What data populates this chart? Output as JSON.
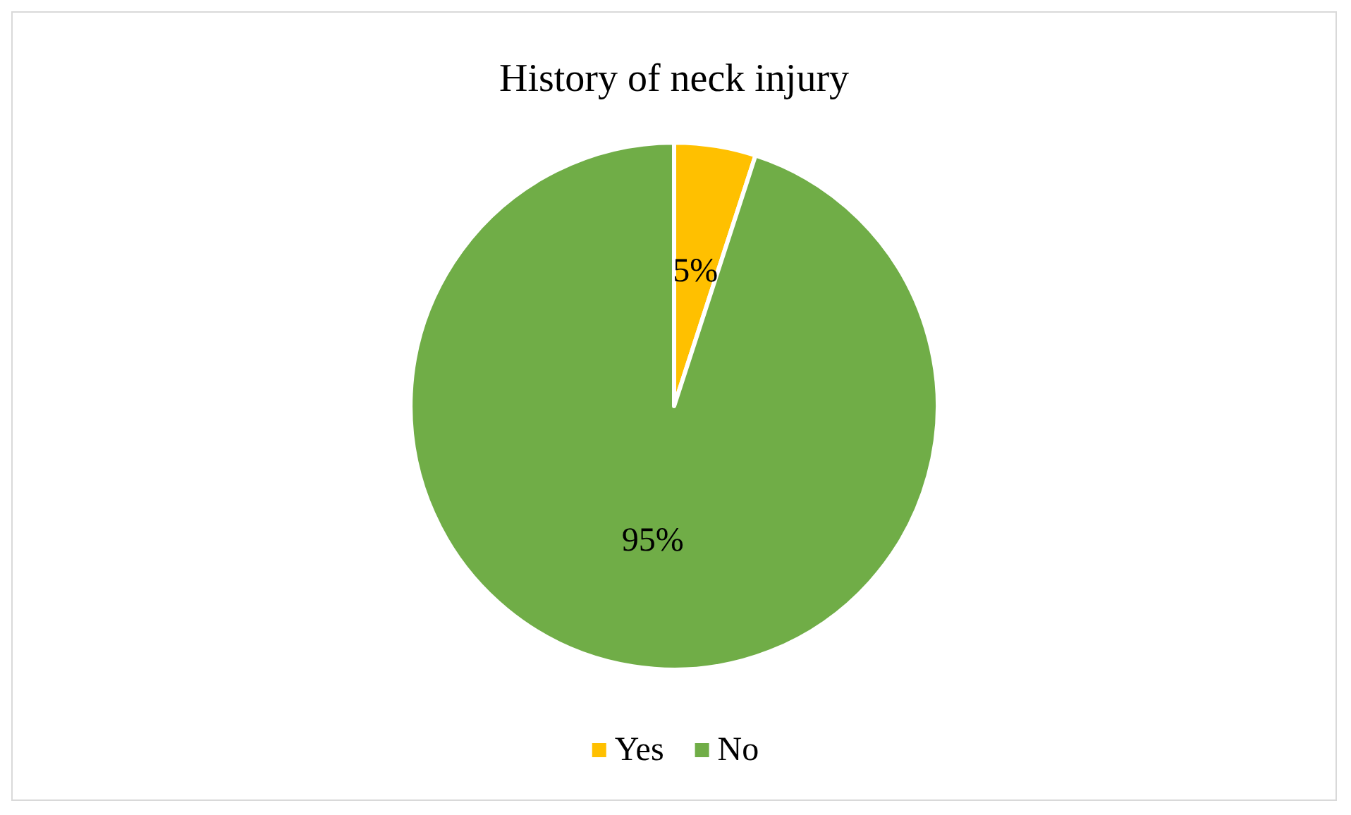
{
  "chart_data": {
    "type": "pie",
    "title": "History of neck injury",
    "categories": [
      "Yes",
      "No"
    ],
    "values": [
      5,
      95
    ],
    "value_labels": [
      "5%",
      "95%"
    ],
    "colors": [
      "#ffc000",
      "#70ad47"
    ],
    "legend": "bottom"
  }
}
